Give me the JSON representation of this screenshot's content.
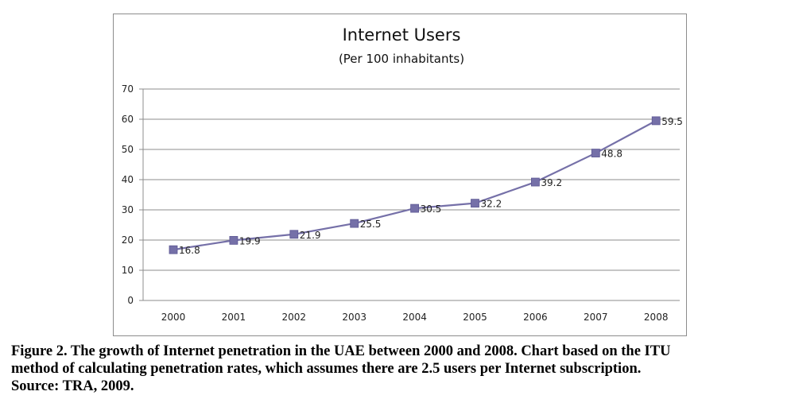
{
  "chart_data": {
    "type": "line",
    "title": "Internet Users",
    "subtitle": "(Per 100 inhabitants)",
    "categories": [
      "2000",
      "2001",
      "2002",
      "2003",
      "2004",
      "2005",
      "2006",
      "2007",
      "2008"
    ],
    "series": [
      {
        "name": "Internet Users",
        "values": [
          16.8,
          19.9,
          21.9,
          25.5,
          30.5,
          32.2,
          39.2,
          48.8,
          59.5
        ],
        "data_labels": [
          "16.8",
          "19.9",
          "21.9",
          "25.5",
          "30.5",
          "32.2",
          "39.2",
          "48.8",
          "59.5"
        ],
        "color": "#7570a8",
        "marker": "square"
      }
    ],
    "ylim": [
      0,
      70
    ],
    "yticks": [
      "0",
      "10",
      "20",
      "30",
      "40",
      "50",
      "60",
      "70"
    ],
    "xlabel": "",
    "ylabel": "",
    "grid": true,
    "legend": "none"
  },
  "caption": {
    "line1": "Figure 2. The growth of Internet penetration in the UAE between 2000 and 2008. Chart based on the ITU",
    "line2": "method of calculating penetration rates, which assumes there are 2.5 users per Internet subscription.",
    "line3": "Source: TRA, 2009."
  },
  "colors": {
    "grid": "#8c8c8c",
    "axis": "#8c8c8c",
    "series": "#7570a8"
  }
}
